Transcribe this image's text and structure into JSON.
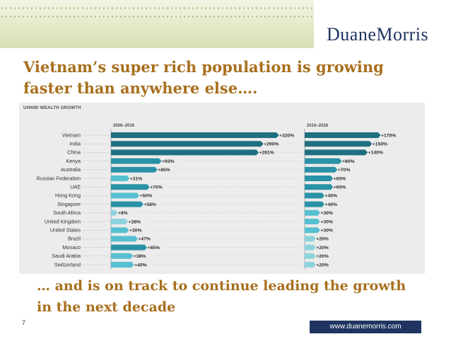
{
  "header": {
    "logo_main": "Duane",
    "logo_second": "Morris",
    "brand_color": "#1f3461"
  },
  "title": "Vietnam’s super rich population is growing faster than anywhere else….",
  "subtitle": "… and is on track to continue leading the growth in the next decade",
  "footer": {
    "page_number": "7",
    "url": "www.duanemorris.com"
  },
  "chart_data": {
    "type": "bar",
    "title": "UHNWI WEALTH GROWTH",
    "categories": [
      "Vietnam",
      "India",
      "China",
      "Kenya",
      "Australia",
      "Russian Federation",
      "UAE",
      "Hong Kong",
      "Singapore",
      "South Africa",
      "United Kingdom",
      "United States",
      "Brazil",
      "Monaco",
      "Saudi Arabia",
      "Switzerland"
    ],
    "series": [
      {
        "name": "2006–2016",
        "values": [
          320,
          290,
          281,
          93,
          85,
          31,
          70,
          50,
          58,
          8,
          28,
          30,
          47,
          65,
          38,
          40
        ],
        "labels": [
          "+320%",
          "+290%",
          "+281%",
          "+93%",
          "+85%",
          "+31%",
          "+70%",
          "+50%",
          "+58%",
          "+8%",
          "+28%",
          "+30%",
          "+47%",
          "+65%",
          "+38%",
          "+40%"
        ]
      },
      {
        "name": "2016–2026",
        "values": [
          170,
          150,
          140,
          80,
          70,
          60,
          60,
          40,
          40,
          30,
          30,
          30,
          20,
          20,
          20,
          20
        ],
        "labels": [
          "+170%",
          "+150%",
          "+140%",
          "+80%",
          "+70%",
          "+60%",
          "+60%",
          "+40%",
          "+40%",
          "+30%",
          "+30%",
          "+30%",
          "+20%",
          "+20%",
          "+20%",
          "+20%"
        ]
      }
    ],
    "xlabel": "",
    "ylabel": "",
    "colors": {
      "dark": "#1f6f80",
      "mid": "#2a92a6",
      "light": "#56c0d0",
      "lighter": "#8ed3dc"
    }
  }
}
